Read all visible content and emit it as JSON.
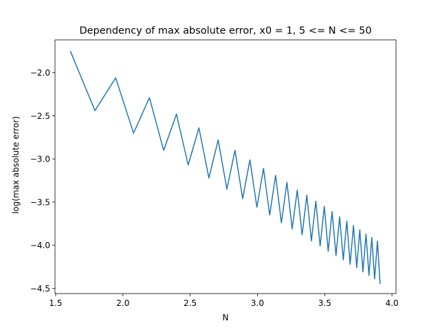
{
  "chart_data": {
    "type": "line",
    "title": "Dependency of max absolute error, x0 = 1, 5 <= N <= 50",
    "xlabel": "N",
    "ylabel": "log(max absolute error)",
    "xlim": [
      1.495,
      4.03
    ],
    "ylim": [
      -4.56,
      -1.62
    ],
    "xticks": [
      1.5,
      2.0,
      2.5,
      3.0,
      3.5,
      4.0
    ],
    "xtick_labels": [
      "1.5",
      "2.0",
      "2.5",
      "3.0",
      "3.5",
      "4.0"
    ],
    "yticks": [
      -4.5,
      -4.0,
      -3.5,
      -3.0,
      -2.5,
      -2.0
    ],
    "ytick_labels": [
      "−4.5",
      "−4.0",
      "−3.5",
      "−3.0",
      "−2.5",
      "−2.0"
    ],
    "grid": false,
    "series": [
      {
        "color": "#1f77b4",
        "x": [
          1.609,
          1.792,
          1.946,
          2.079,
          2.197,
          2.303,
          2.398,
          2.485,
          2.565,
          2.639,
          2.708,
          2.773,
          2.833,
          2.89,
          2.944,
          2.996,
          3.045,
          3.091,
          3.135,
          3.178,
          3.219,
          3.258,
          3.296,
          3.332,
          3.367,
          3.401,
          3.434,
          3.466,
          3.497,
          3.526,
          3.555,
          3.584,
          3.611,
          3.638,
          3.664,
          3.689,
          3.714,
          3.738,
          3.761,
          3.784,
          3.807,
          3.829,
          3.85,
          3.871,
          3.892,
          3.912
        ],
        "y": [
          -1.75,
          -2.44,
          -2.06,
          -2.7,
          -2.29,
          -2.9,
          -2.48,
          -3.07,
          -2.64,
          -3.22,
          -2.78,
          -3.35,
          -2.9,
          -3.46,
          -3.01,
          -3.56,
          -3.11,
          -3.65,
          -3.19,
          -3.74,
          -3.27,
          -3.81,
          -3.36,
          -3.88,
          -3.42,
          -3.95,
          -3.49,
          -4.01,
          -3.55,
          -4.07,
          -3.61,
          -4.12,
          -3.67,
          -4.17,
          -3.72,
          -4.22,
          -3.77,
          -4.26,
          -3.82,
          -4.31,
          -3.87,
          -4.35,
          -3.91,
          -4.39,
          -3.95,
          -4.45
        ]
      }
    ]
  }
}
